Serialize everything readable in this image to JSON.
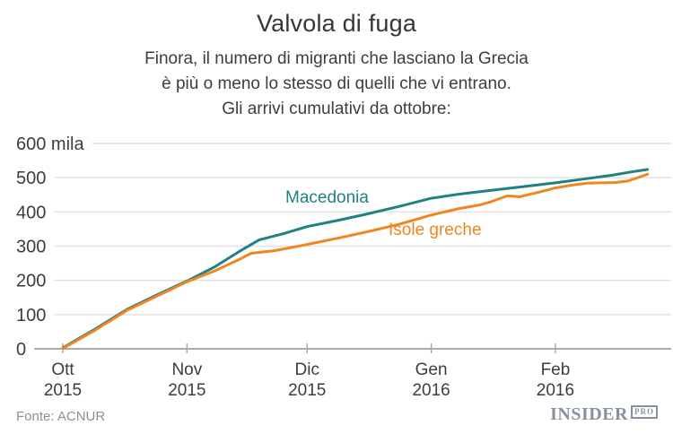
{
  "header": {
    "title": "Valvola di fuga",
    "subtitle_lines": [
      "Finora, il numero di migranti che lasciano la Grecia",
      "è più o meno lo stesso di quelli che vi entrano.",
      "Gli arrivi cumulativi da ottobre:"
    ]
  },
  "chart_data": {
    "type": "line",
    "title": "Valvola di fuga",
    "y_unit": "migliaia di persone (mila)",
    "ylim": [
      0,
      600
    ],
    "grid": true,
    "legend_position": "inline-labels",
    "y_ticks": [
      {
        "value": 600,
        "label": "600 mila"
      },
      {
        "value": 500,
        "label": "500"
      },
      {
        "value": 400,
        "label": "400"
      },
      {
        "value": 300,
        "label": "300"
      },
      {
        "value": 200,
        "label": "200"
      },
      {
        "value": 100,
        "label": "100"
      },
      {
        "value": 0,
        "label": "0"
      }
    ],
    "x_unit": "giorni dal 1 ottobre 2015",
    "x_ticks": [
      {
        "day": 0,
        "month": "Ott",
        "year": "2015"
      },
      {
        "day": 31,
        "month": "Nov",
        "year": "2015"
      },
      {
        "day": 61,
        "month": "Dic",
        "year": "2015"
      },
      {
        "day": 92,
        "month": "Gen",
        "year": "2016"
      },
      {
        "day": 123,
        "month": "Feb",
        "year": "2016"
      }
    ],
    "series": [
      {
        "name": "Macedonia",
        "color": "#1F8183",
        "points": [
          [
            0,
            3
          ],
          [
            8,
            57
          ],
          [
            16,
            115
          ],
          [
            24,
            160
          ],
          [
            31,
            198
          ],
          [
            38,
            240
          ],
          [
            44,
            284
          ],
          [
            49,
            318
          ],
          [
            55,
            336
          ],
          [
            61,
            357
          ],
          [
            69,
            376
          ],
          [
            76,
            394
          ],
          [
            84,
            416
          ],
          [
            92,
            440
          ],
          [
            99,
            452
          ],
          [
            107,
            463
          ],
          [
            115,
            474
          ],
          [
            123,
            485
          ],
          [
            130,
            496
          ],
          [
            137,
            507
          ],
          [
            142,
            517
          ],
          [
            146,
            524
          ]
        ]
      },
      {
        "name": "Isole greche",
        "color": "#EE8722",
        "points": [
          [
            0,
            1
          ],
          [
            8,
            54
          ],
          [
            16,
            112
          ],
          [
            24,
            157
          ],
          [
            31,
            196
          ],
          [
            38,
            228
          ],
          [
            44,
            261
          ],
          [
            47,
            279
          ],
          [
            53,
            287
          ],
          [
            61,
            305
          ],
          [
            69,
            324
          ],
          [
            76,
            342
          ],
          [
            84,
            364
          ],
          [
            92,
            391
          ],
          [
            99,
            410
          ],
          [
            104,
            420
          ],
          [
            107,
            430
          ],
          [
            111,
            447
          ],
          [
            114,
            444
          ],
          [
            119,
            458
          ],
          [
            123,
            470
          ],
          [
            127,
            478
          ],
          [
            131,
            484
          ],
          [
            138,
            486
          ],
          [
            141,
            490
          ],
          [
            146,
            510
          ]
        ]
      }
    ]
  },
  "footer": {
    "source": "Fonte: ACNUR",
    "logo": {
      "main": "INSIDER",
      "badge": "PRO"
    }
  }
}
